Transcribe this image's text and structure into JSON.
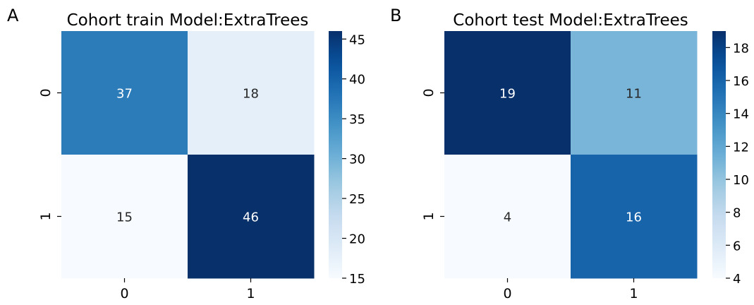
{
  "panels": [
    {
      "letter": "A"
    },
    {
      "letter": "B"
    }
  ],
  "chart_data": [
    {
      "type": "heatmap",
      "title": "Cohort train Model:ExtraTrees",
      "xlabel": "",
      "ylabel": "",
      "x_categories": [
        "0",
        "1"
      ],
      "y_categories": [
        "0",
        "1"
      ],
      "values": [
        [
          37,
          18
        ],
        [
          15,
          46
        ]
      ],
      "value_labels": [
        [
          "37",
          "18"
        ],
        [
          "15",
          "46"
        ]
      ],
      "colormap": "Blues",
      "color_range": [
        15,
        46
      ],
      "colorbar_ticks": [
        15,
        20,
        25,
        30,
        35,
        40,
        45
      ],
      "colorbar_tick_labels": [
        "15",
        "20",
        "25",
        "30",
        "35",
        "40",
        "45"
      ],
      "grid": false,
      "legend": "colorbar-right"
    },
    {
      "type": "heatmap",
      "title": "Cohort test Model:ExtraTrees",
      "xlabel": "",
      "ylabel": "",
      "x_categories": [
        "0",
        "1"
      ],
      "y_categories": [
        "0",
        "1"
      ],
      "values": [
        [
          19,
          11
        ],
        [
          4,
          16
        ]
      ],
      "value_labels": [
        [
          "19",
          "11"
        ],
        [
          "4",
          "16"
        ]
      ],
      "colormap": "Blues",
      "color_range": [
        4,
        19
      ],
      "colorbar_ticks": [
        4,
        6,
        8,
        10,
        12,
        14,
        16,
        18
      ],
      "colorbar_tick_labels": [
        "4",
        "6",
        "8",
        "10",
        "12",
        "14",
        "16",
        "18"
      ],
      "grid": false,
      "legend": "colorbar-right"
    }
  ]
}
